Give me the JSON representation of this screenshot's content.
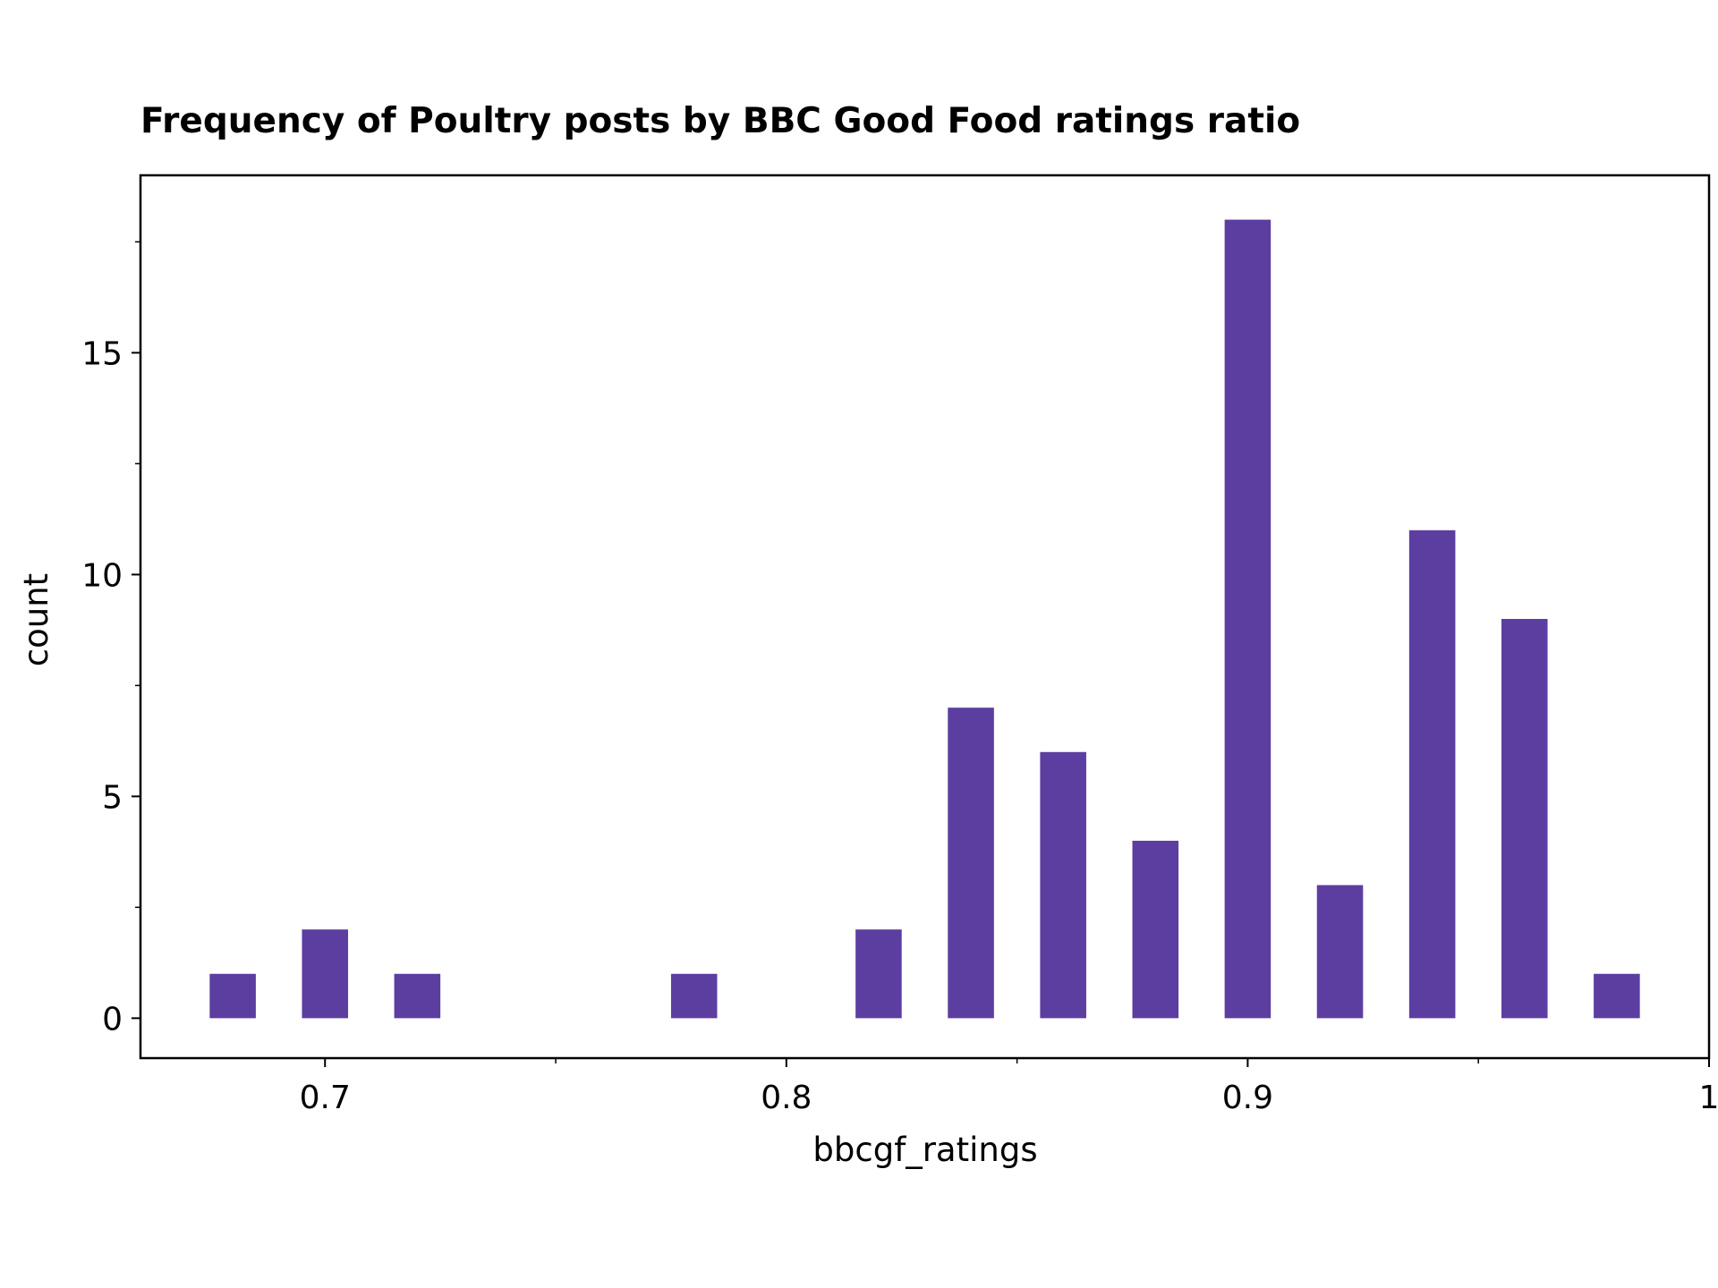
{
  "chart_data": {
    "type": "bar",
    "title": "Frequency of Poultry posts by BBC Good Food ratings ratio",
    "xlabel": "bbcgf_ratings",
    "ylabel": "count",
    "xlim": [
      0.66,
      1.0
    ],
    "ylim": [
      -0.9,
      19
    ],
    "x_ticks": [
      0.7,
      0.8,
      0.9,
      1.0
    ],
    "x_tick_labels": [
      "0.7",
      "0.8",
      "0.9",
      "1"
    ],
    "x_minor_ticks": [
      0.75,
      0.85,
      0.95
    ],
    "y_ticks": [
      0,
      5,
      10,
      15
    ],
    "y_tick_labels": [
      "0",
      "5",
      "10",
      "15"
    ],
    "y_minor_ticks": [
      2.5,
      7.5,
      12.5,
      17.5
    ],
    "bar_width": 0.01,
    "x": [
      0.68,
      0.7,
      0.72,
      0.78,
      0.82,
      0.84,
      0.86,
      0.88,
      0.9,
      0.92,
      0.94,
      0.96,
      0.98
    ],
    "values": [
      1,
      2,
      1,
      1,
      2,
      7,
      6,
      4,
      18,
      3,
      11,
      9,
      1
    ],
    "bar_color": "#5c3ea1",
    "grid": false,
    "legend": false
  }
}
